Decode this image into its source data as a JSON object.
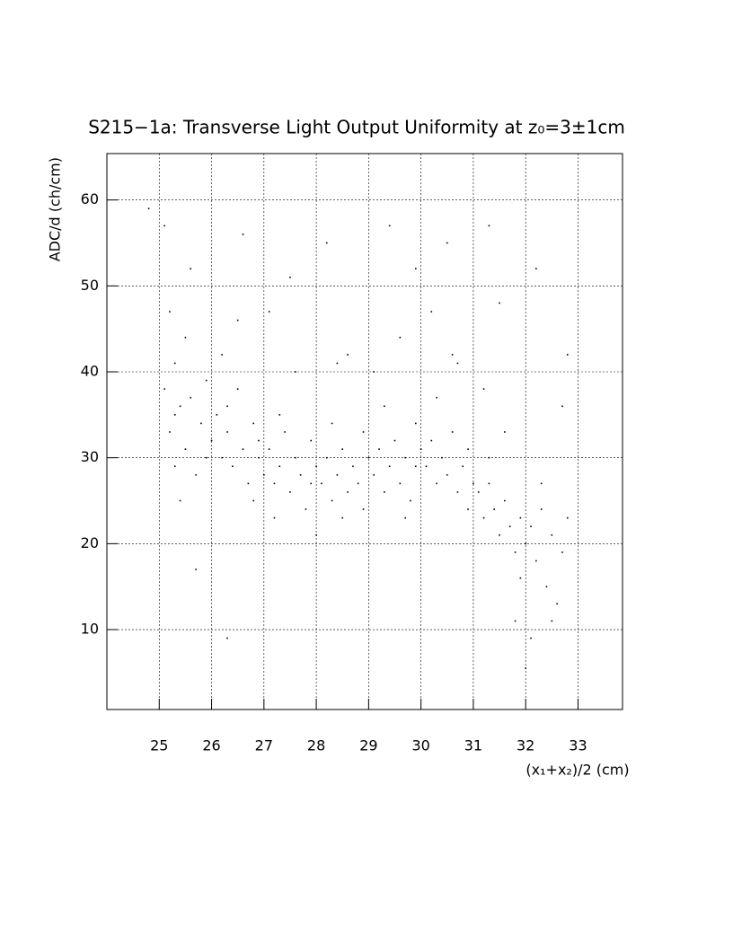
{
  "chart_data": {
    "type": "scatter",
    "title": "S215−1a: Transverse Light Output Uniformity at z₀=3±1cm",
    "x_label": "(x₁+x₂)/2 (cm)",
    "y_label": "ADC/d (ch/cm)",
    "color": "#000000",
    "grid": true,
    "xlim": [
      24.0,
      33.85
    ],
    "ylim": [
      0.7,
      65.4
    ],
    "xticks": [
      25,
      26,
      27,
      28,
      29,
      30,
      31,
      32,
      33
    ],
    "yticks": [
      10,
      20,
      30,
      40,
      50,
      60
    ],
    "x": [
      25.1,
      25.2,
      25.3,
      25.3,
      25.4,
      25.5,
      25.5,
      25.6,
      25.7,
      25.8,
      25.9,
      26.0,
      25.2,
      25.4,
      25.6,
      25.1,
      25.9,
      25.3,
      26.1,
      26.2,
      26.3,
      26.4,
      26.5,
      26.6,
      26.7,
      26.8,
      26.9,
      27.0,
      26.2,
      26.5,
      26.8,
      26.3,
      26.9,
      27.1,
      27.2,
      27.3,
      27.4,
      27.5,
      27.6,
      27.7,
      27.8,
      27.9,
      28.0,
      27.3,
      27.6,
      27.9,
      27.5,
      27.2,
      28.1,
      28.2,
      28.3,
      28.4,
      28.5,
      28.6,
      28.7,
      28.8,
      28.9,
      29.0,
      28.3,
      28.6,
      28.9,
      28.2,
      28.5,
      29.1,
      29.2,
      29.3,
      29.4,
      29.5,
      29.6,
      29.7,
      29.8,
      29.9,
      30.0,
      29.3,
      29.6,
      29.9,
      29.4,
      29.7,
      30.1,
      30.2,
      30.3,
      30.4,
      30.5,
      30.6,
      30.7,
      30.8,
      30.9,
      31.0,
      30.3,
      30.6,
      30.9,
      30.5,
      30.2,
      31.1,
      31.2,
      31.3,
      31.4,
      31.5,
      31.6,
      31.7,
      31.8,
      31.9,
      32.0,
      31.3,
      31.6,
      31.9,
      31.5,
      31.8,
      31.2,
      32.1,
      32.2,
      32.3,
      32.4,
      32.5,
      32.6,
      32.7,
      32.8,
      32.1,
      32.3,
      32.5,
      32.7,
      32.2,
      32.0,
      24.8,
      26.3,
      27.1,
      28.4,
      29.1,
      30.7,
      31.3,
      32.8,
      25.7,
      26.6,
      29.9,
      28.0
    ],
    "values": [
      38,
      33,
      29,
      41,
      36,
      31,
      44,
      37,
      28,
      34,
      39,
      32,
      47,
      25,
      52,
      57,
      30,
      35,
      35,
      30,
      33,
      29,
      38,
      31,
      27,
      34,
      30,
      28,
      42,
      46,
      25,
      36,
      32,
      31,
      27,
      29,
      33,
      26,
      30,
      28,
      24,
      27,
      29,
      35,
      40,
      32,
      51,
      23,
      27,
      30,
      25,
      28,
      31,
      26,
      29,
      27,
      24,
      30,
      34,
      42,
      33,
      55,
      23,
      28,
      31,
      26,
      29,
      32,
      27,
      30,
      25,
      29,
      31,
      36,
      44,
      34,
      57,
      23,
      29,
      32,
      27,
      30,
      28,
      33,
      26,
      29,
      31,
      27,
      37,
      42,
      24,
      55,
      47,
      26,
      23,
      27,
      24,
      21,
      25,
      22,
      19,
      23,
      20,
      30,
      33,
      16,
      48,
      11,
      38,
      22,
      18,
      24,
      15,
      21,
      13,
      19,
      23,
      9,
      27,
      11,
      36,
      52,
      5.5,
      59,
      9,
      47,
      41,
      40,
      41,
      57,
      42,
      17,
      56,
      52,
      21
    ]
  }
}
